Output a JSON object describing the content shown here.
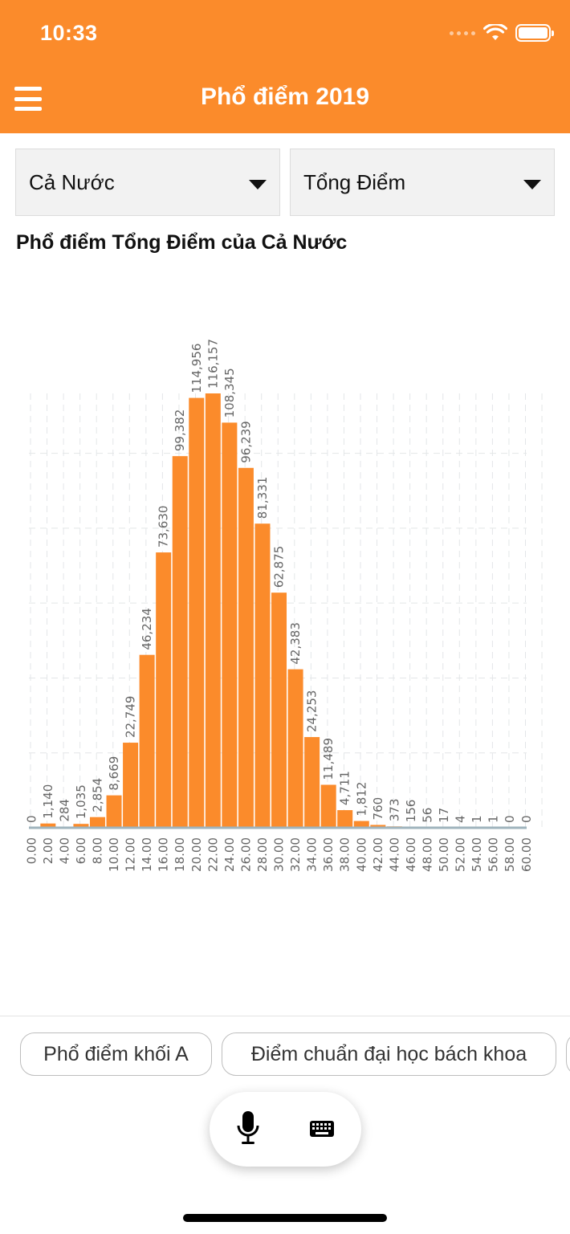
{
  "status_bar": {
    "time": "10:33"
  },
  "header": {
    "title": "Phổ điểm 2019",
    "menu_icon": "hamburger-menu-icon"
  },
  "filters": {
    "region": {
      "value": "Cả Nước"
    },
    "subject": {
      "value": "Tổng Điểm"
    }
  },
  "colors": {
    "accent": "#fb8b2b",
    "bar": "#fb8b2b",
    "grid": "#e3e6e8",
    "axis": "#9fb4bd",
    "label": "#666666"
  },
  "chart_data": {
    "type": "bar",
    "title": "Phổ điểm Tổng Điểm của Cả Nước",
    "xlabel": "",
    "ylabel": "",
    "categories": [
      "0.00",
      "2.00",
      "4.00",
      "6.00",
      "8.00",
      "10.00",
      "12.00",
      "14.00",
      "16.00",
      "18.00",
      "20.00",
      "22.00",
      "24.00",
      "26.00",
      "28.00",
      "30.00",
      "32.00",
      "34.00",
      "36.00",
      "38.00",
      "40.00",
      "42.00",
      "44.00",
      "46.00",
      "48.00",
      "50.00",
      "52.00",
      "54.00",
      "56.00",
      "58.00",
      "60.00"
    ],
    "values": [
      0,
      1140,
      284,
      1035,
      2854,
      8669,
      22749,
      46234,
      73630,
      99382,
      114956,
      116157,
      108345,
      96239,
      81331,
      62875,
      42383,
      24253,
      11489,
      4711,
      1812,
      760,
      373,
      156,
      56,
      17,
      4,
      1,
      1,
      0,
      0
    ],
    "value_labels": [
      "0",
      "1,140",
      "284",
      "1,035",
      "2,854",
      "8,669",
      "22,749",
      "46,234",
      "73,630",
      "99,382",
      "114,956",
      "116,157",
      "108,345",
      "96,239",
      "81,331",
      "62,875",
      "42,383",
      "24,253",
      "11,489",
      "4,711",
      "1,812",
      "760",
      "373",
      "156",
      "56",
      "17",
      "4",
      "1",
      "1",
      "0",
      "0"
    ],
    "ylim": [
      0,
      116157
    ],
    "grid": true,
    "legend": "none"
  },
  "suggestions": [
    "Phổ điểm khối A",
    "Điểm chuẩn đại học bách khoa",
    ""
  ],
  "input_controls": {
    "mic_icon": "microphone-icon",
    "keyboard_icon": "keyboard-icon"
  }
}
